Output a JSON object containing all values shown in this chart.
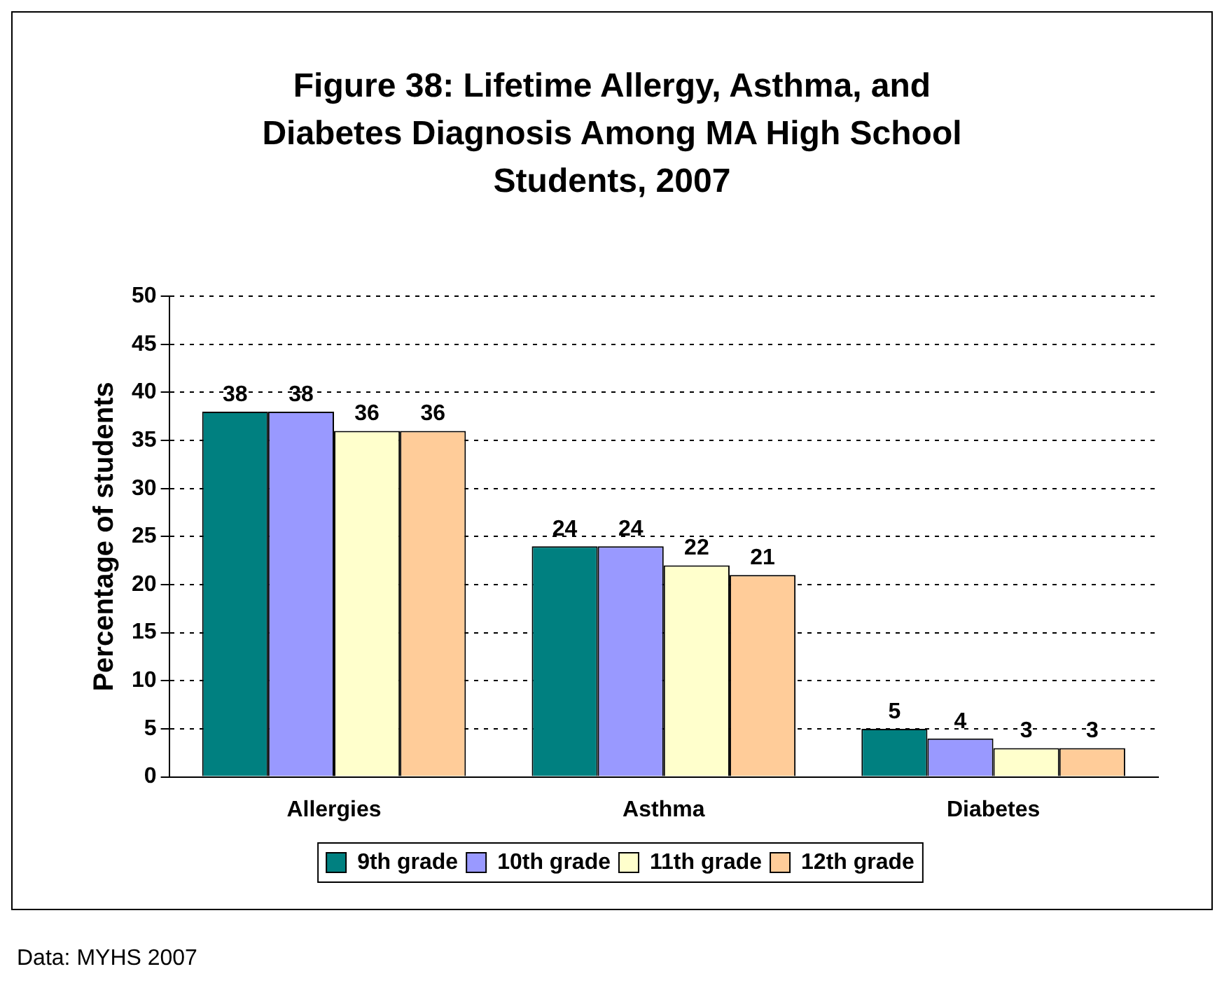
{
  "chart_data": {
    "type": "bar",
    "title": "Figure 38: Lifetime Allergy, Asthma, and Diabetes Diagnosis Among MA High School Students, 2007",
    "ylabel": "Percentage of students",
    "categories": [
      "Allergies",
      "Asthma",
      "Diabetes"
    ],
    "series": [
      {
        "name": "9th grade",
        "color": "#008080",
        "values": [
          38,
          24,
          5
        ]
      },
      {
        "name": "10th grade",
        "color": "#9999ff",
        "values": [
          38,
          24,
          4
        ]
      },
      {
        "name": "11th grade",
        "color": "#ffffcc",
        "values": [
          36,
          22,
          3
        ]
      },
      {
        "name": "12th grade",
        "color": "#ffcc99",
        "values": [
          36,
          21,
          3
        ]
      }
    ],
    "ylim": [
      0,
      50
    ],
    "yticks": [
      0,
      5,
      10,
      15,
      20,
      25,
      30,
      35,
      40,
      45,
      50
    ],
    "grid": "y",
    "legend": "bottom",
    "data_labels": true,
    "annotations": [
      "Data: MYHS 2007"
    ]
  }
}
